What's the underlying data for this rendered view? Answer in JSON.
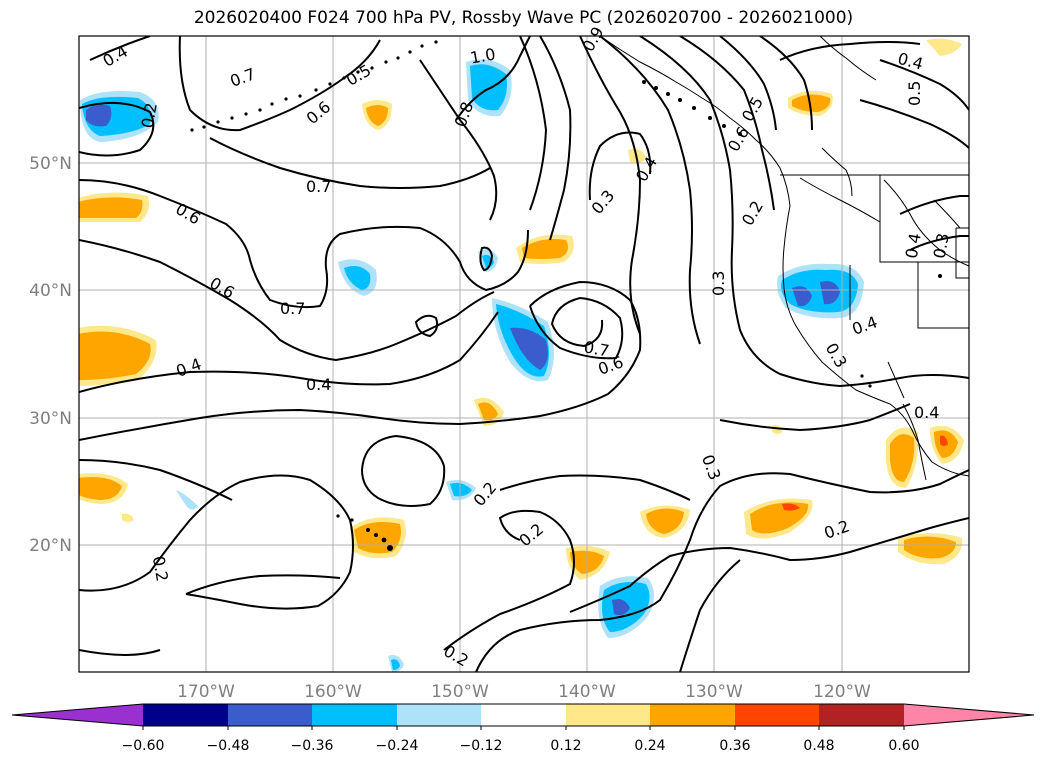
{
  "title": "2026020400 F024 700 hPa PV, Rossby Wave PC (2026020700 - 2026021000)",
  "lat_labels": [
    "50°N",
    "40°N",
    "30°N",
    "20°N"
  ],
  "lon_labels": [
    "170°W",
    "160°W",
    "150°W",
    "140°W",
    "130°W",
    "120°W"
  ],
  "contour_labels": [
    "0.4",
    "0.7",
    "0.6",
    "1.0",
    "0.5",
    "0.8",
    "0.9",
    "0.4",
    "0.5",
    "0.6",
    "0.7",
    "0.6",
    "0.6",
    "0.7",
    "0.3",
    "0.4",
    "0.2",
    "0.5",
    "0.4",
    "0.4",
    "0.3",
    "0.4",
    "0.3",
    "0.7",
    "0.6",
    "0.4",
    "0.4",
    "0.2",
    "0.2",
    "0.3",
    "0.2",
    "0.2",
    "0.3",
    "0.2",
    "0.2"
  ],
  "colorbar": {
    "ticks": [
      "−0.60",
      "−0.48",
      "−0.36",
      "−0.24",
      "−0.12",
      "0.12",
      "0.24",
      "0.36",
      "0.48",
      "0.60"
    ],
    "colors": [
      "#9b30d0",
      "#00008b",
      "#3a5ccc",
      "#00bfff",
      "#ade2fa",
      "#ffffff",
      "#ffe88a",
      "#ffa500",
      "#ff4500",
      "#b22222",
      "#ff85a8"
    ]
  },
  "map": {
    "lon_range": [
      -180,
      -110
    ],
    "lat_range": [
      10,
      60
    ],
    "grid": true
  }
}
